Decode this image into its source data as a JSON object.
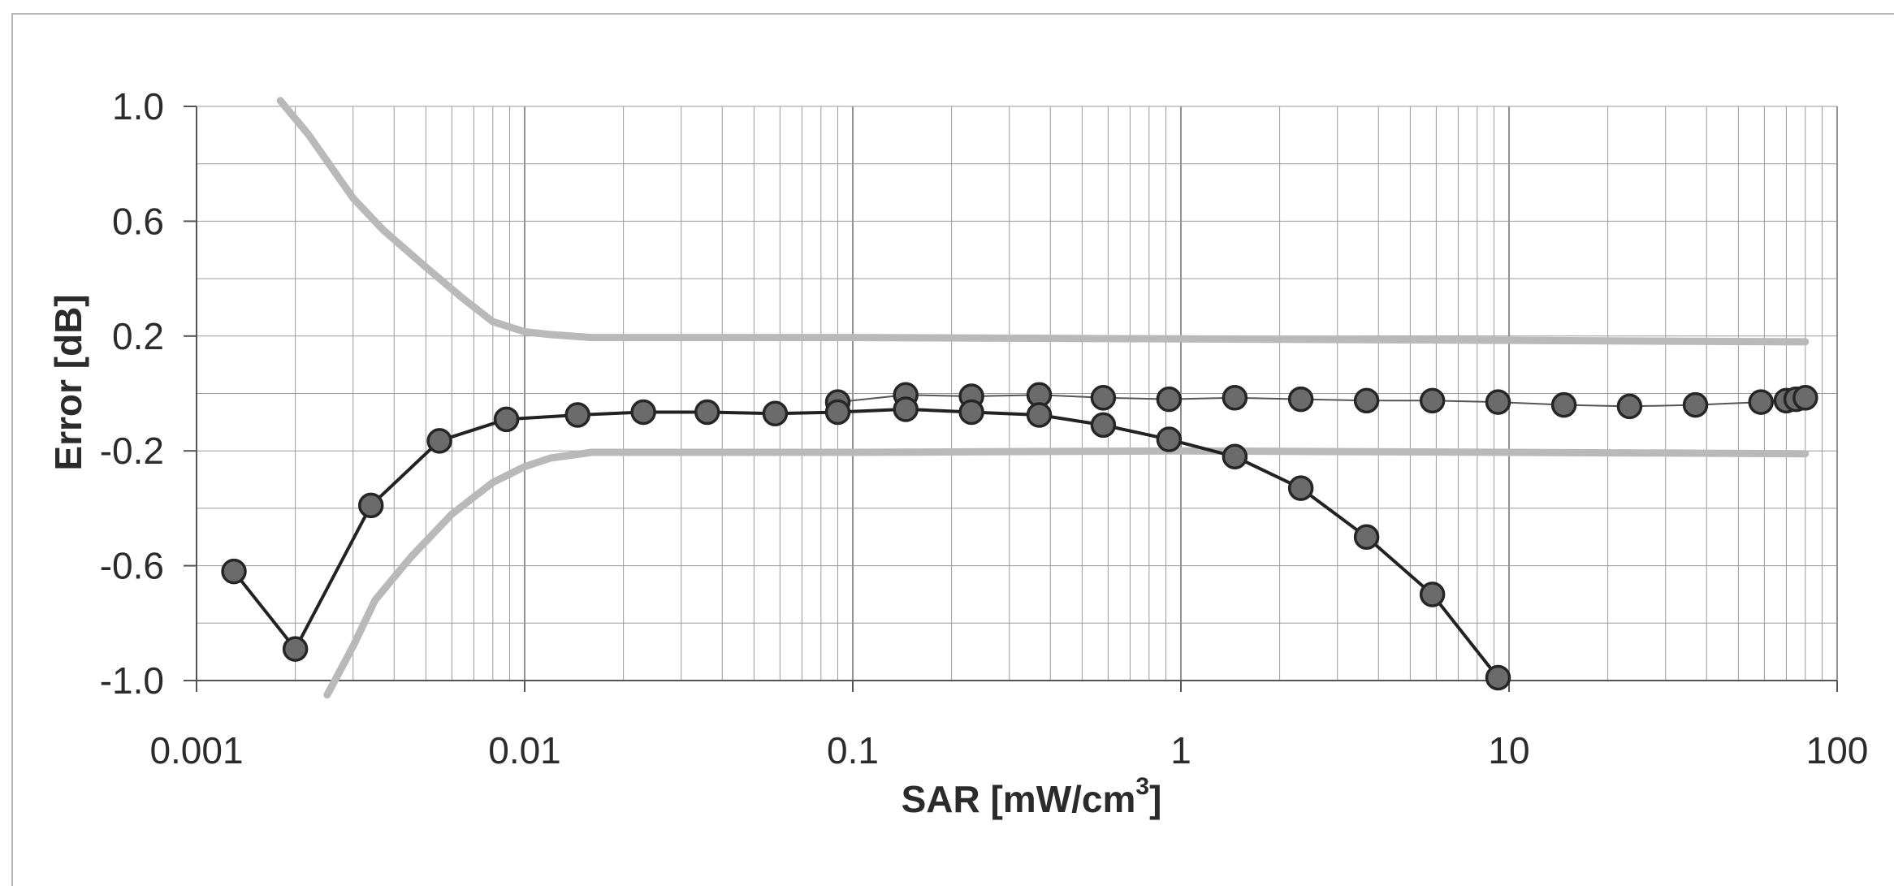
{
  "chart_data": {
    "type": "scatter",
    "xscale": "log",
    "xlim": [
      0.001,
      100
    ],
    "ylim": [
      -1.0,
      1.0
    ],
    "grid": true,
    "xlabel": "SAR [mW/cm",
    "xlabel_sup": "3",
    "xlabel_tail": "]",
    "ylabel": "Error [dB]",
    "x_ticks": [
      0.001,
      0.01,
      0.1,
      1,
      10,
      100
    ],
    "x_tick_labels": [
      "0.001",
      "0.01",
      "0.1",
      "1",
      "10",
      "100"
    ],
    "y_ticks": [
      1.0,
      0.6,
      0.2,
      -0.2,
      -0.6,
      -1.0
    ],
    "y_tick_labels": [
      "1.0",
      "0.6",
      "0.2",
      "-0.2",
      "-0.6",
      "-1.0"
    ],
    "series": [
      {
        "color": "#b9b9b9",
        "style": "band-upper",
        "x": [
          0.0018,
          0.0022,
          0.003,
          0.0037,
          0.005,
          0.0065,
          0.008,
          0.01,
          0.012,
          0.016,
          0.1,
          1,
          10,
          80
        ],
        "y": [
          1.02,
          0.9,
          0.68,
          0.57,
          0.44,
          0.33,
          0.25,
          0.215,
          0.205,
          0.195,
          0.195,
          0.19,
          0.185,
          0.18
        ]
      },
      {
        "color": "#b9b9b9",
        "style": "band-lower",
        "x": [
          0.0025,
          0.003,
          0.0035,
          0.0045,
          0.006,
          0.008,
          0.01,
          0.012,
          0.016,
          0.1,
          1,
          10,
          80
        ],
        "y": [
          -1.05,
          -0.88,
          -0.72,
          -0.57,
          -0.42,
          -0.31,
          -0.255,
          -0.225,
          -0.205,
          -0.205,
          -0.2,
          -0.205,
          -0.21
        ]
      },
      {
        "color": "#555555",
        "style": "thin",
        "x": [
          0.09,
          0.145,
          0.23,
          0.37,
          0.58,
          0.92,
          1.46,
          2.32,
          3.68,
          5.84,
          9.26,
          14.7,
          23.3,
          37,
          58.6,
          70,
          75,
          80
        ],
        "y": [
          -0.03,
          -0.005,
          -0.01,
          -0.005,
          -0.015,
          -0.02,
          -0.015,
          -0.02,
          -0.025,
          -0.025,
          -0.03,
          -0.04,
          -0.045,
          -0.04,
          -0.03,
          -0.025,
          -0.02,
          -0.015
        ]
      },
      {
        "color": "#222222",
        "style": "thick",
        "x": [
          0.0013,
          0.002,
          0.0034,
          0.0055,
          0.0088,
          0.0145,
          0.023,
          0.036,
          0.058,
          0.09,
          0.145,
          0.23,
          0.37,
          0.58,
          0.92,
          1.46,
          2.32,
          3.68,
          5.84,
          9.26
        ],
        "y": [
          -0.62,
          -0.89,
          -0.39,
          -0.165,
          -0.09,
          -0.075,
          -0.065,
          -0.065,
          -0.07,
          -0.065,
          -0.055,
          -0.065,
          -0.075,
          -0.11,
          -0.16,
          -0.22,
          -0.33,
          -0.5,
          -0.7,
          -0.99
        ]
      }
    ]
  }
}
